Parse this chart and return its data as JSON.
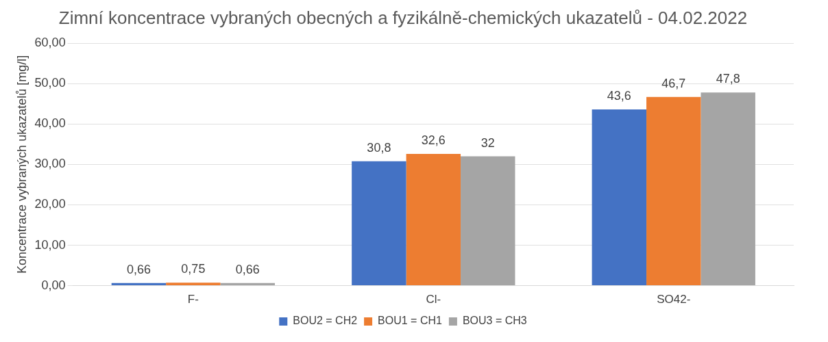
{
  "chart_data": {
    "type": "bar",
    "title": "Zimní koncentrace vybraných obecných a fyzikálně-chemických ukazatelů - 04.02.2022",
    "ylabel": "Koncentrace vybraných ukazatelů [mg/l]",
    "categories": [
      "F-",
      "Cl-",
      "SO42-"
    ],
    "series": [
      {
        "name": "BOU2 = CH2",
        "color": "#4472c4",
        "values": [
          0.66,
          30.8,
          43.6
        ],
        "value_labels": [
          "0,66",
          "30,8",
          "43,6"
        ]
      },
      {
        "name": "BOU1 = CH1",
        "color": "#ed7d31",
        "values": [
          0.75,
          32.6,
          46.7
        ],
        "value_labels": [
          "0,75",
          "32,6",
          "46,7"
        ]
      },
      {
        "name": "BOU3 = CH3",
        "color": "#a5a5a5",
        "values": [
          0.66,
          32,
          47.8
        ],
        "value_labels": [
          "0,66",
          "32",
          "47,8"
        ]
      }
    ],
    "ylim": [
      0,
      60
    ],
    "yticks": [
      {
        "value": 0,
        "label": "0,00"
      },
      {
        "value": 10,
        "label": "10,00"
      },
      {
        "value": 20,
        "label": "20,00"
      },
      {
        "value": 30,
        "label": "30,00"
      },
      {
        "value": 40,
        "label": "40,00"
      },
      {
        "value": 50,
        "label": "50,00"
      },
      {
        "value": 60,
        "label": "60,00"
      }
    ],
    "grid": "y",
    "legend": "bottom"
  }
}
